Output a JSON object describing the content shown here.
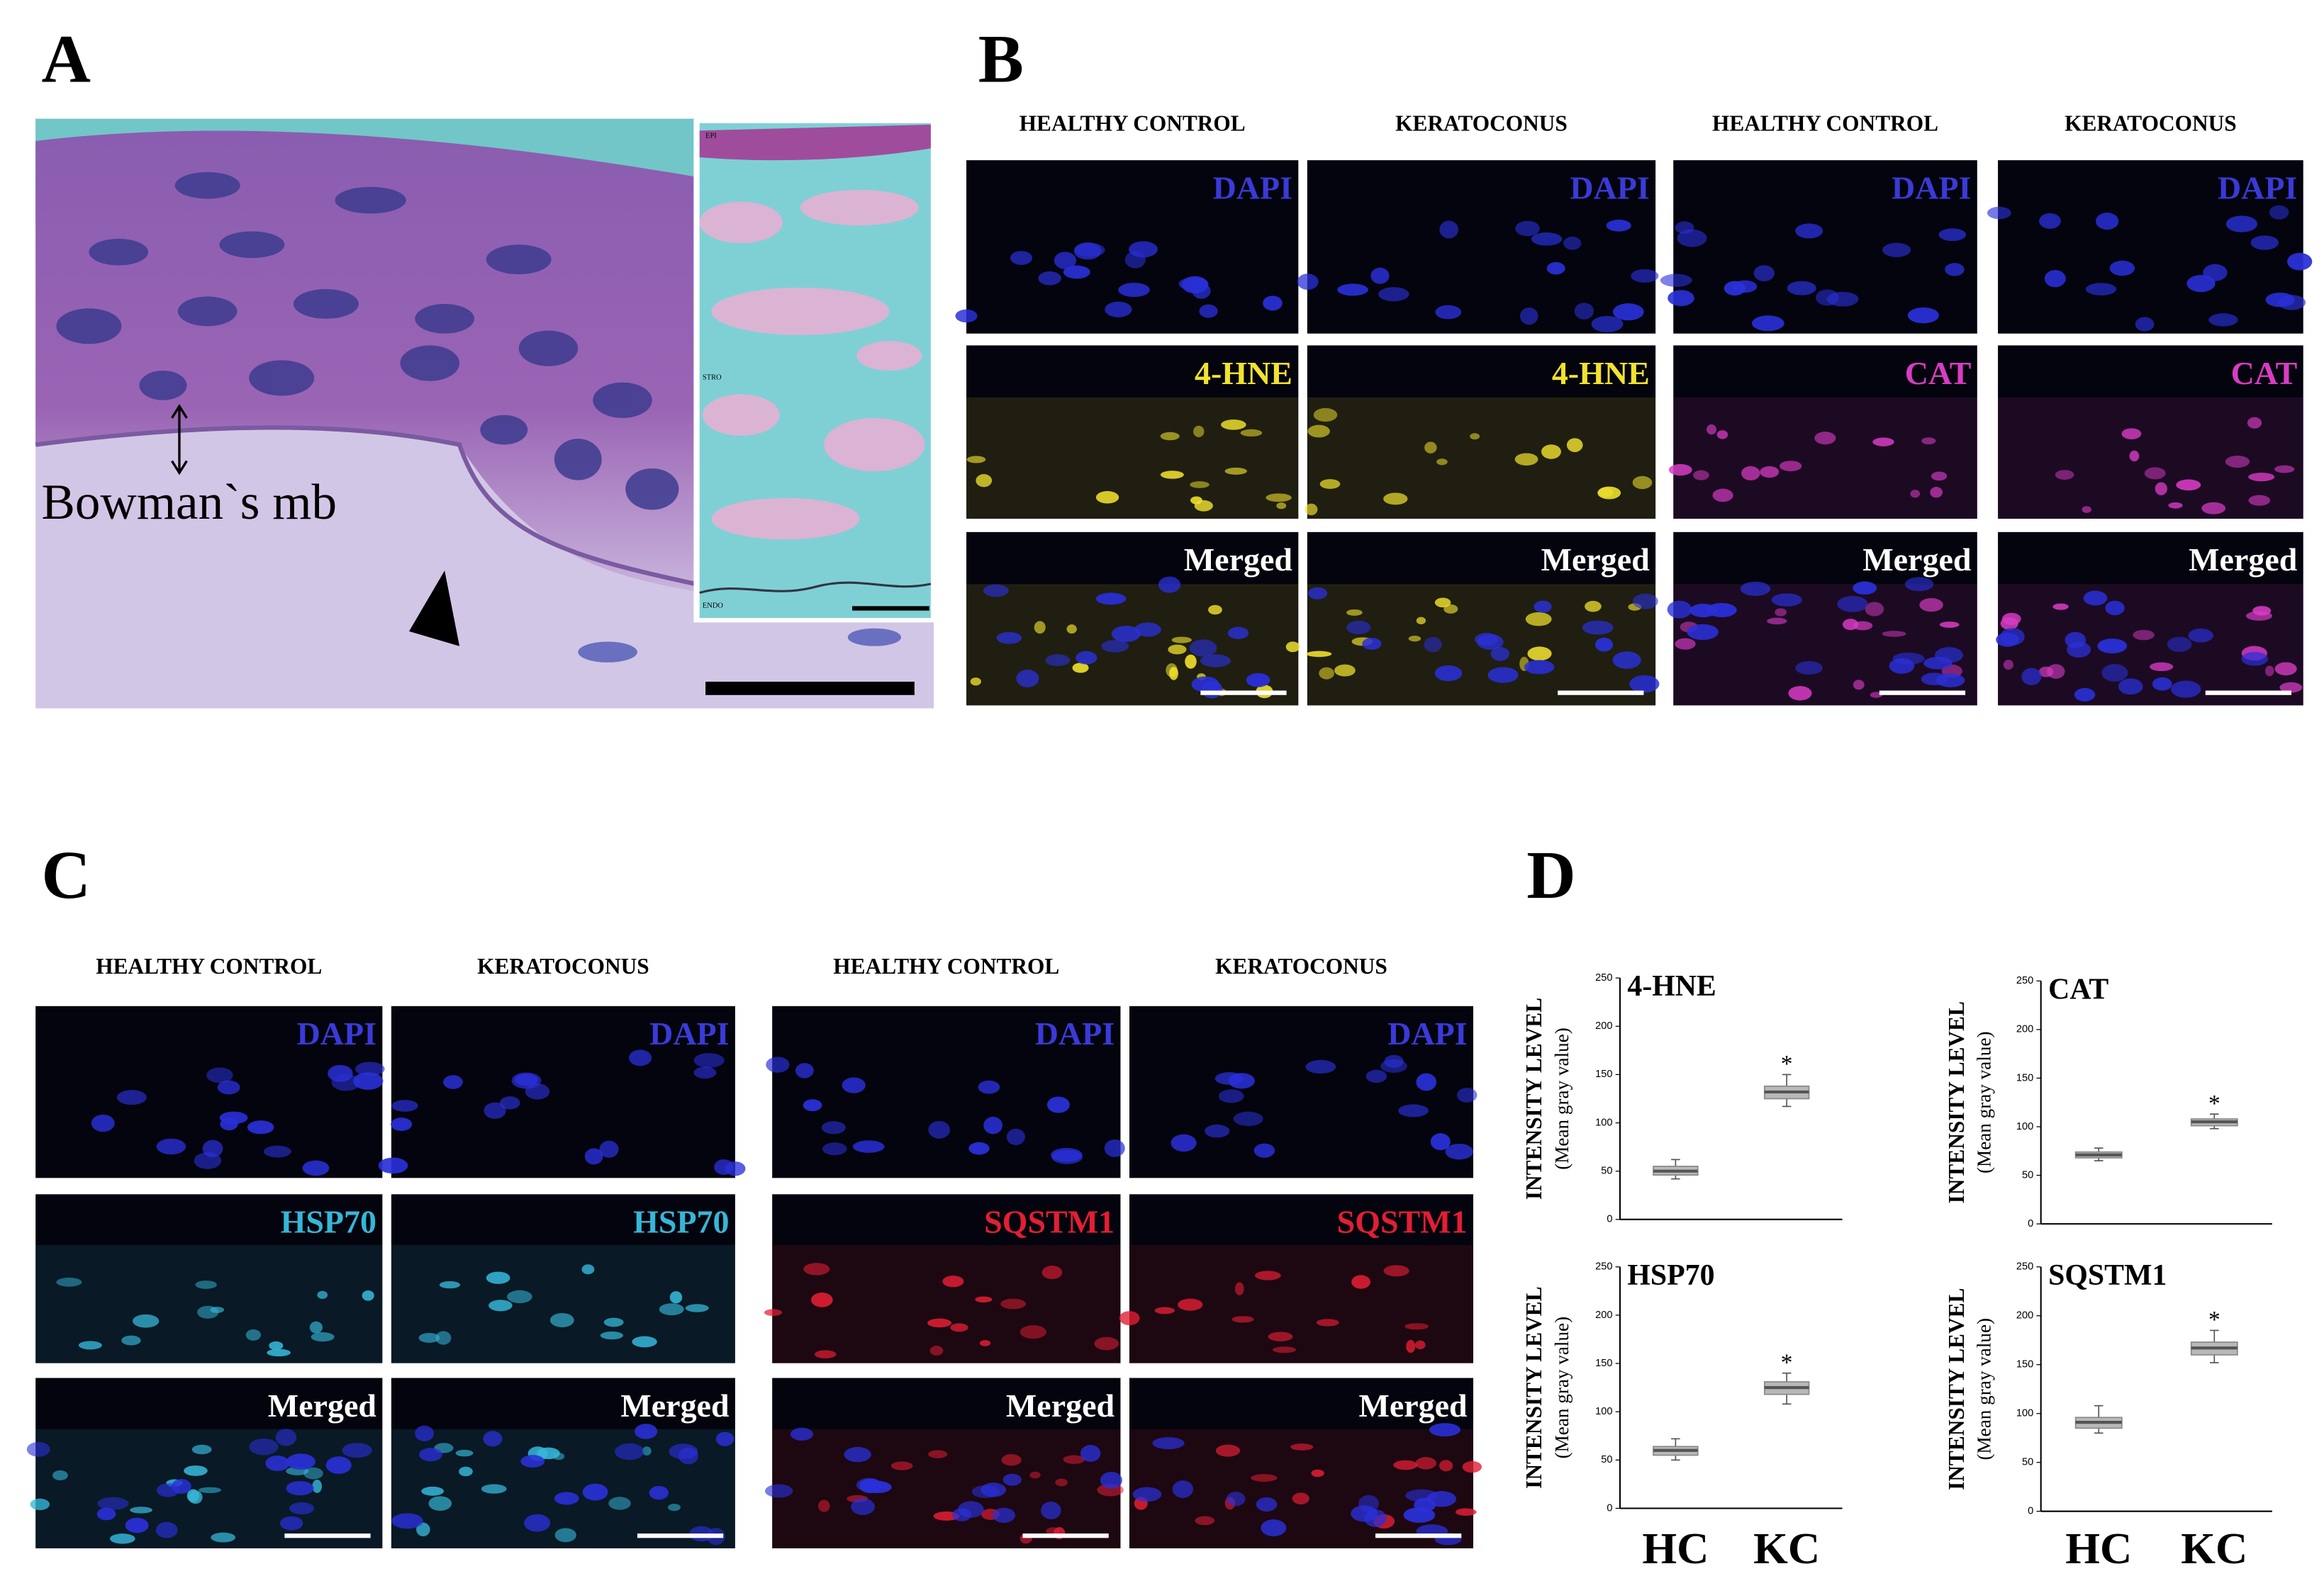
{
  "panel_a": {
    "label": "A",
    "annotation": "Bowman`s mb",
    "inset_labels": [
      "EPI",
      "STRO",
      "ENDO"
    ]
  },
  "panel_b": {
    "label": "B",
    "column_headers": [
      "HEALTHY CONTROL",
      "KERATOCONUS",
      "HEALTHY CONTROL",
      "KERATOCONUS"
    ],
    "rows": [
      [
        {
          "label": "DAPI",
          "color": "#3a3ad8"
        },
        {
          "label": "DAPI",
          "color": "#3a3ad8"
        },
        {
          "label": "DAPI",
          "color": "#3a3ad8"
        },
        {
          "label": "DAPI",
          "color": "#3a3ad8"
        }
      ],
      [
        {
          "label": "4-HNE",
          "color": "#f2e22e"
        },
        {
          "label": "4-HNE",
          "color": "#f2e22e"
        },
        {
          "label": "CAT",
          "color": "#d83cc4"
        },
        {
          "label": "CAT",
          "color": "#d83cc4"
        }
      ],
      [
        {
          "label": "Merged",
          "color": "#ffffff"
        },
        {
          "label": "Merged",
          "color": "#ffffff"
        },
        {
          "label": "Merged",
          "color": "#ffffff"
        },
        {
          "label": "Merged",
          "color": "#ffffff"
        }
      ]
    ]
  },
  "panel_c": {
    "label": "C",
    "column_headers": [
      "HEALTHY CONTROL",
      "KERATOCONUS",
      "HEALTHY CONTROL",
      "KERATOCONUS"
    ],
    "rows": [
      [
        {
          "label": "DAPI",
          "color": "#3a3ad8"
        },
        {
          "label": "DAPI",
          "color": "#3a3ad8"
        },
        {
          "label": "DAPI",
          "color": "#3a3ad8"
        },
        {
          "label": "DAPI",
          "color": "#3a3ad8"
        }
      ],
      [
        {
          "label": "HSP70",
          "color": "#36b6d8"
        },
        {
          "label": "HSP70",
          "color": "#36b6d8"
        },
        {
          "label": "SQSTM1",
          "color": "#e21e34"
        },
        {
          "label": "SQSTM1",
          "color": "#e21e34"
        }
      ],
      [
        {
          "label": "Merged",
          "color": "#ffffff"
        },
        {
          "label": "Merged",
          "color": "#ffffff"
        },
        {
          "label": "Merged",
          "color": "#ffffff"
        },
        {
          "label": "Merged",
          "color": "#ffffff"
        }
      ]
    ]
  },
  "panel_d": {
    "label": "D"
  },
  "chart_data": [
    {
      "type": "box",
      "title": "4-HNE",
      "y_label": "INTENSITY LEVEL",
      "y_sublabel": "(Mean gray value)",
      "ylim": [
        0,
        250
      ],
      "yticks": [
        0,
        50,
        100,
        150,
        200,
        250
      ],
      "color": "#888888",
      "boxes": [
        {
          "low": 42,
          "q1": 46,
          "median": 50,
          "q3": 55,
          "high": 62
        },
        {
          "low": 117,
          "q1": 125,
          "median": 132,
          "q3": 138,
          "high": 150,
          "annotation": "*"
        }
      ]
    },
    {
      "type": "box",
      "title": "CAT",
      "y_label": "INTENSITY LEVEL",
      "y_sublabel": "(Mean gray value)",
      "ylim": [
        0,
        250
      ],
      "yticks": [
        0,
        50,
        100,
        150,
        200,
        250
      ],
      "color": "#888888",
      "boxes": [
        {
          "low": 65,
          "q1": 68,
          "median": 71,
          "q3": 74,
          "high": 78
        },
        {
          "low": 98,
          "q1": 101,
          "median": 105,
          "q3": 108,
          "high": 113,
          "annotation": "*"
        }
      ]
    },
    {
      "type": "box",
      "title": "HSP70",
      "y_label": "INTENSITY LEVEL",
      "y_sublabel": "(Mean gray value)",
      "ylim": [
        0,
        250
      ],
      "yticks": [
        0,
        50,
        100,
        150,
        200,
        250
      ],
      "color": "#888888",
      "categories": [
        "HC",
        "KC"
      ],
      "boxes": [
        {
          "low": 50,
          "q1": 55,
          "median": 60,
          "q3": 64,
          "high": 72
        },
        {
          "low": 108,
          "q1": 118,
          "median": 125,
          "q3": 131,
          "high": 140,
          "annotation": "*"
        }
      ]
    },
    {
      "type": "box",
      "title": "SQSTM1",
      "y_label": "INTENSITY LEVEL",
      "y_sublabel": "(Mean gray value)",
      "ylim": [
        0,
        250
      ],
      "yticks": [
        0,
        50,
        100,
        150,
        200,
        250
      ],
      "color": "#888888",
      "categories": [
        "HC",
        "KC"
      ],
      "boxes": [
        {
          "low": 80,
          "q1": 85,
          "median": 91,
          "q3": 96,
          "high": 108
        },
        {
          "low": 152,
          "q1": 160,
          "median": 167,
          "q3": 173,
          "high": 185,
          "annotation": "*"
        }
      ]
    }
  ]
}
